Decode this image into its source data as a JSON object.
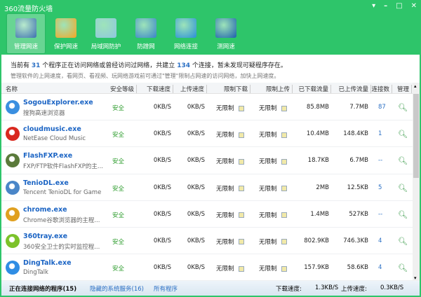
{
  "window": {
    "title": "360流量防火墙"
  },
  "toolbar": [
    {
      "label": "管理网速",
      "icon": "monitor-chart-icon",
      "color": "#3d6fb0",
      "active": true
    },
    {
      "label": "保护网速",
      "icon": "lightning-shield-icon",
      "color": "#f5a623"
    },
    {
      "label": "局域网防护",
      "icon": "brick-wall-icon",
      "color": "#8fc6e0"
    },
    {
      "label": "防蹭网",
      "icon": "globe-shield-icon",
      "color": "#3a84c9"
    },
    {
      "label": "网络连接",
      "icon": "network-screen-icon",
      "color": "#2a8fd8"
    },
    {
      "label": "测网速",
      "icon": "speedometer-icon",
      "color": "#1d5fae"
    }
  ],
  "info": {
    "prefix": "当前有",
    "programs": "31",
    "mid": "个程序正在访问网络或曾经访问过网络，共建立",
    "connections": "134",
    "suffix": "个连接，暂未发现可疑程序存在。",
    "tip": "管理软件的上网速度，看网页、看视频、玩网络游戏前可通过\"管理\"限制占网速的访问网络，加快上网速度。"
  },
  "columns": [
    "名称",
    "安全等级",
    "下载速度",
    "上传速度",
    "限制下载",
    "限制上传",
    "已下载流量",
    "已上传流量",
    "连接数",
    "管理"
  ],
  "rows": [
    {
      "name": "SogouExplorer.exe",
      "desc": "搜狗高速浏览器",
      "icon": "sogou-icon",
      "color": "#3a8fe0",
      "safety": "安全",
      "down": "0KB/S",
      "up": "0KB/S",
      "limit_down": "无限制",
      "limit_up": "无限制",
      "downloaded": "85.8MB",
      "uploaded": "7.7MB",
      "conns": "87"
    },
    {
      "name": "cloudmusic.exe",
      "desc": "NetEase Cloud Music",
      "icon": "netease-music-icon",
      "color": "#d9281e",
      "safety": "安全",
      "down": "0KB/S",
      "up": "0KB/S",
      "limit_down": "无限制",
      "limit_up": "无限制",
      "downloaded": "10.4MB",
      "uploaded": "148.4KB",
      "conns": "1"
    },
    {
      "name": "FlashFXP.exe",
      "desc": "FXP/FTP软件FlashFXP的主...",
      "icon": "flashfxp-icon",
      "color": "#5a7a3a",
      "safety": "安全",
      "down": "0KB/S",
      "up": "0KB/S",
      "limit_down": "无限制",
      "limit_up": "无限制",
      "downloaded": "18.7KB",
      "uploaded": "6.7MB",
      "conns": "--"
    },
    {
      "name": "TenioDL.exe",
      "desc": "Tencent TenioDL for Game",
      "icon": "teniodl-icon",
      "color": "#4a86c8",
      "safety": "安全",
      "down": "0KB/S",
      "up": "0KB/S",
      "limit_down": "无限制",
      "limit_up": "无限制",
      "downloaded": "2MB",
      "uploaded": "12.5KB",
      "conns": "5"
    },
    {
      "name": "chrome.exe",
      "desc": "Chrome谷歌浏览器的主程...",
      "icon": "chrome-icon",
      "color": "#e0a020",
      "safety": "安全",
      "down": "0KB/S",
      "up": "0KB/S",
      "limit_down": "无限制",
      "limit_up": "无限制",
      "downloaded": "1.4MB",
      "uploaded": "527KB",
      "conns": "--"
    },
    {
      "name": "360tray.exe",
      "desc": "360安全卫士的实时监控程...",
      "icon": "360-tray-icon",
      "color": "#7cc22a",
      "safety": "安全",
      "down": "0KB/S",
      "up": "0KB/S",
      "limit_down": "无限制",
      "limit_up": "无限制",
      "downloaded": "802.9KB",
      "uploaded": "746.3KB",
      "conns": "4"
    },
    {
      "name": "DingTalk.exe",
      "desc": "DingTalk",
      "icon": "dingtalk-icon",
      "color": "#2f8de4",
      "safety": "安全",
      "down": "0KB/S",
      "up": "0KB/S",
      "limit_down": "无限制",
      "limit_up": "无限制",
      "downloaded": "157.9KB",
      "uploaded": "58.6KB",
      "conns": "4"
    }
  ],
  "footer": {
    "tab_active": "正在连接网络的程序(15)",
    "tab_hidden": "隐藏的系统服务(16)",
    "tab_all": "所有程序",
    "down_label": "下载速度:",
    "down_value": "1.3KB/S",
    "up_label": "上传速度:",
    "up_value": "0.3KB/S"
  }
}
